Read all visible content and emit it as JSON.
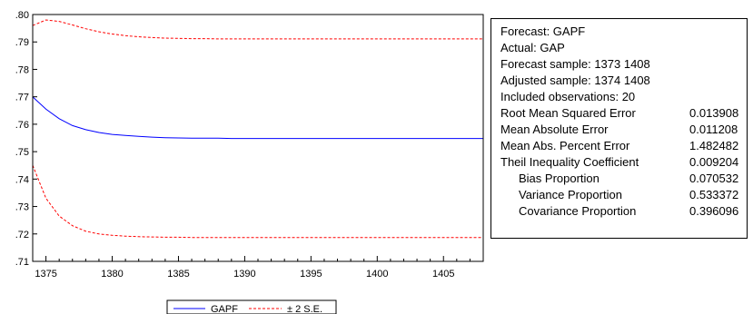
{
  "chart_data": {
    "type": "line",
    "x": [
      1374,
      1375,
      1376,
      1377,
      1378,
      1379,
      1380,
      1381,
      1382,
      1383,
      1384,
      1385,
      1386,
      1387,
      1388,
      1389,
      1390,
      1391,
      1392,
      1393,
      1394,
      1395,
      1396,
      1397,
      1398,
      1399,
      1400,
      1401,
      1402,
      1403,
      1404,
      1405,
      1406,
      1407,
      1408
    ],
    "series": [
      {
        "name": "GAPF",
        "color": "#0000ff",
        "dash": false,
        "values": [
          0.77,
          0.7655,
          0.762,
          0.7595,
          0.758,
          0.757,
          0.7563,
          0.7559,
          0.7556,
          0.7553,
          0.7551,
          0.755,
          0.7549,
          0.7549,
          0.7549,
          0.7548,
          0.7548,
          0.7548,
          0.7548,
          0.7548,
          0.7548,
          0.7548,
          0.7548,
          0.7548,
          0.7548,
          0.7548,
          0.7548,
          0.7548,
          0.7548,
          0.7548,
          0.7548,
          0.7548,
          0.7548,
          0.7548,
          0.7548
        ]
      },
      {
        "name": "± 2 S.E.",
        "color": "#ff0000",
        "dash": true,
        "values": [
          0.796,
          0.798,
          0.7975,
          0.7962,
          0.7948,
          0.7937,
          0.7929,
          0.7923,
          0.7919,
          0.7916,
          0.7914,
          0.7913,
          0.7912,
          0.7912,
          0.7911,
          0.7911,
          0.7911,
          0.7911,
          0.7911,
          0.7911,
          0.7911,
          0.7911,
          0.7911,
          0.7911,
          0.7911,
          0.7911,
          0.7911,
          0.7911,
          0.7911,
          0.7911,
          0.7911,
          0.7911,
          0.7911,
          0.7911,
          0.7911
        ]
      },
      {
        "name": "",
        "color": "#ff0000",
        "dash": true,
        "values": [
          0.745,
          0.733,
          0.7265,
          0.723,
          0.721,
          0.72,
          0.7195,
          0.7192,
          0.719,
          0.7189,
          0.7188,
          0.7188,
          0.7187,
          0.7187,
          0.7187,
          0.7187,
          0.7187,
          0.7187,
          0.7187,
          0.7187,
          0.7187,
          0.7187,
          0.7187,
          0.7187,
          0.7187,
          0.7187,
          0.7187,
          0.7187,
          0.7187,
          0.7187,
          0.7187,
          0.7187,
          0.7187,
          0.7187,
          0.7187
        ]
      }
    ],
    "xlim": [
      1374,
      1408
    ],
    "ylim": [
      0.71,
      0.8
    ],
    "yticks": [
      ".80",
      ".79",
      ".78",
      ".77",
      ".76",
      ".75",
      ".74",
      ".73",
      ".72",
      ".71"
    ],
    "ytick_values": [
      0.8,
      0.79,
      0.78,
      0.77,
      0.76,
      0.75,
      0.74,
      0.73,
      0.72,
      0.71
    ],
    "xticks": [
      "1375",
      "1380",
      "1385",
      "1390",
      "1395",
      "1400",
      "1405"
    ],
    "xtick_values": [
      1375,
      1380,
      1385,
      1390,
      1395,
      1400,
      1405
    ],
    "legend": [
      "GAPF",
      "± 2 S.E."
    ],
    "legend_placement": "bottom-center",
    "grid": false
  },
  "stats": {
    "forecast": "Forecast: GAPF",
    "actual": "Actual: GAP",
    "forecast_sample": "Forecast sample: 1373 1408",
    "adjusted_sample": "Adjusted sample: 1374 1408",
    "included_obs": "Included observations: 20",
    "rows": [
      {
        "label": "Root Mean Squared Error",
        "value": "0.013908"
      },
      {
        "label": "Mean Absolute Error",
        "value": "0.011208"
      },
      {
        "label": "Mean Abs. Percent Error",
        "value": "1.482482"
      },
      {
        "label": "Theil Inequality Coefficient",
        "value": "0.009204"
      },
      {
        "label": "Bias Proportion",
        "value": "0.070532"
      },
      {
        "label": "Variance Proportion",
        "value": "0.533372"
      },
      {
        "label": "Covariance Proportion",
        "value": "0.396096"
      }
    ]
  }
}
